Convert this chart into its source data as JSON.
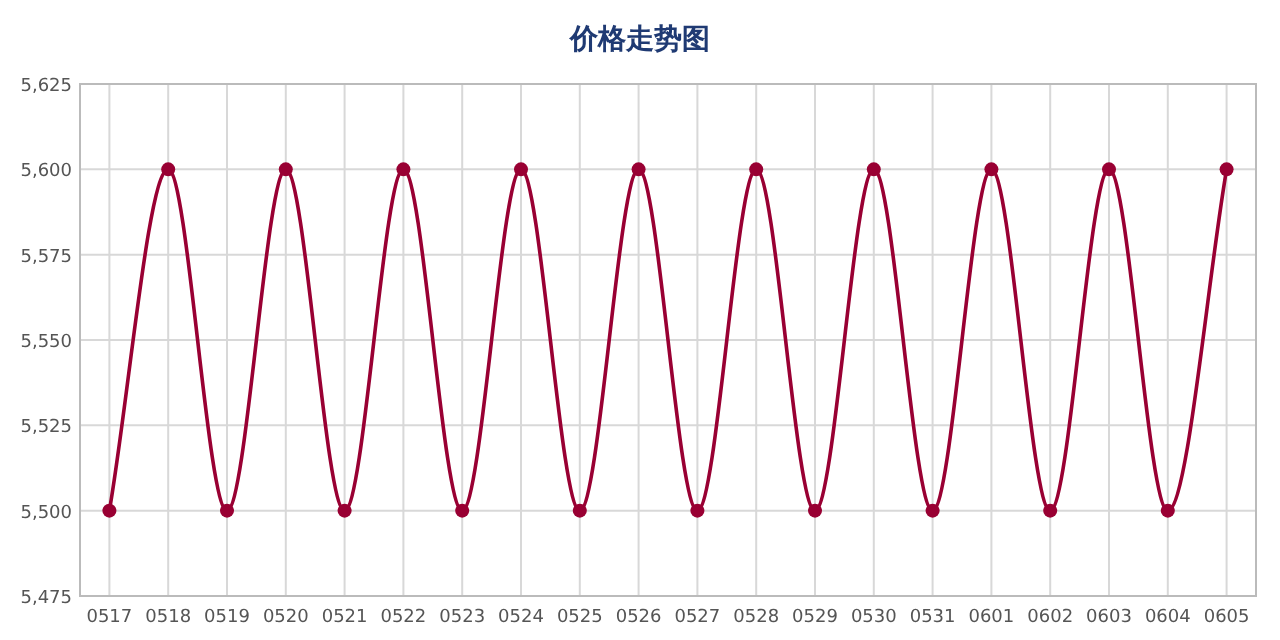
{
  "chart_data": {
    "type": "line",
    "title": "价格走势图",
    "categories": [
      "0517",
      "0518",
      "0519",
      "0520",
      "0521",
      "0522",
      "0523",
      "0524",
      "0525",
      "0526",
      "0527",
      "0528",
      "0529",
      "0530",
      "0531",
      "0601",
      "0602",
      "0603",
      "0604",
      "0605"
    ],
    "series": [
      {
        "color": "#990033",
        "values": [
          5500,
          5600,
          5500,
          5600,
          5500,
          5600,
          5500,
          5600,
          5500,
          5600,
          5500,
          5600,
          5500,
          5600,
          5500,
          5600,
          5500,
          5600,
          5500,
          5600
        ]
      }
    ],
    "ylim": [
      5475,
      5625
    ],
    "yticks": [
      {
        "value": 5475,
        "label": "5,475"
      },
      {
        "value": 5500,
        "label": "5,500"
      },
      {
        "value": 5525,
        "label": "5,525"
      },
      {
        "value": 5550,
        "label": "5,550"
      },
      {
        "value": 5575,
        "label": "5,575"
      },
      {
        "value": 5600,
        "label": "5,600"
      },
      {
        "value": 5625,
        "label": "5,625"
      }
    ],
    "grid": true,
    "marker": "circle",
    "line_style": "solid"
  }
}
